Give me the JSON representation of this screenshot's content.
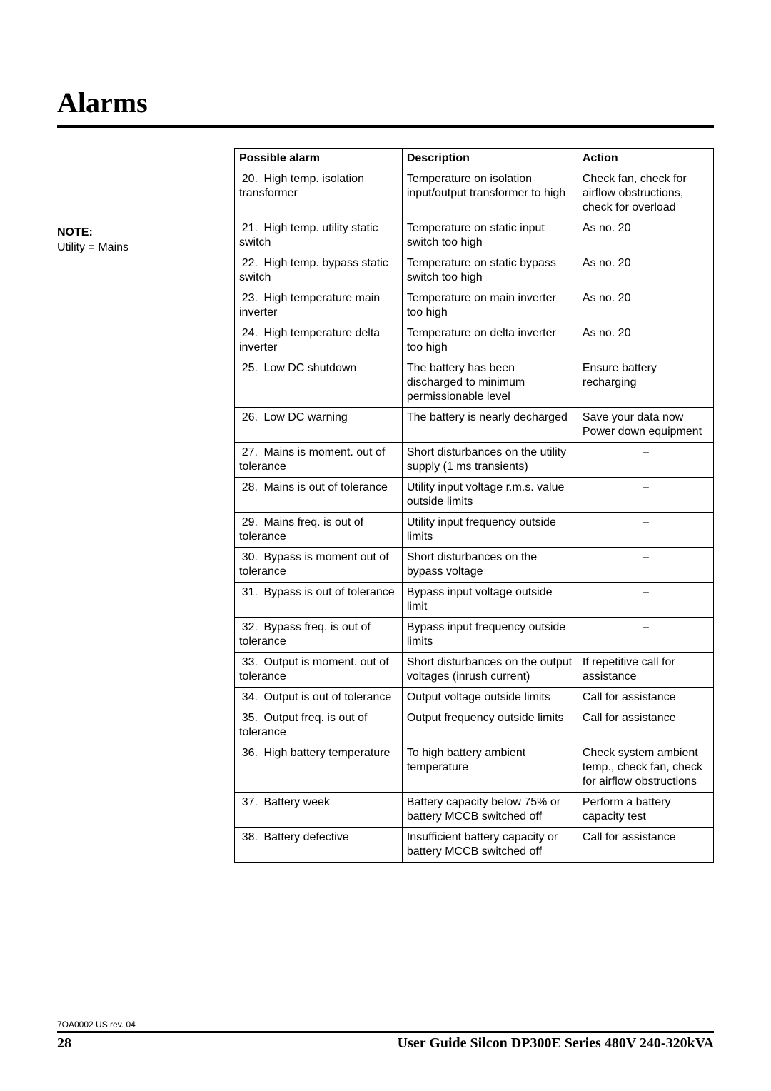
{
  "title": "Alarms",
  "sidebar": {
    "note_label": "NOTE:",
    "note_text": "Utility = Mains"
  },
  "table": {
    "columns": [
      "Possible alarm",
      "Description",
      "Action"
    ],
    "rows": [
      {
        "n": "20.",
        "alarm": "High temp. isolation transformer",
        "desc": "Temperature on isolation input/output transformer to high",
        "action": "Check fan, check for airflow obstructions, check for overload",
        "center": false
      },
      {
        "n": "21.",
        "alarm": "High temp. utility static switch",
        "desc": "Temperature on static input switch too high",
        "action": "As no. 20",
        "center": false
      },
      {
        "n": "22.",
        "alarm": "High temp. bypass static switch",
        "desc": "Temperature on static bypass switch too high",
        "action": "As no. 20",
        "center": false
      },
      {
        "n": "23.",
        "alarm": "High temperature main inverter",
        "desc": "Temperature on main inverter too high",
        "action": "As no. 20",
        "center": false
      },
      {
        "n": "24.",
        "alarm": "High temperature delta inverter",
        "desc": "Temperature on delta inverter too high",
        "action": "As no. 20",
        "center": false
      },
      {
        "n": "25.",
        "alarm": "Low DC shutdown",
        "desc": "The battery has been discharged to minimum permissionable level",
        "action": "Ensure battery recharging",
        "center": false
      },
      {
        "n": "26.",
        "alarm": "Low DC warning",
        "desc": "The battery is nearly decharged",
        "action": "Save your data now Power down equipment",
        "center": false
      },
      {
        "n": "27.",
        "alarm": "Mains is moment. out of tolerance",
        "desc": "Short disturbances on the utility supply (1 ms transients)",
        "action": "–",
        "center": true
      },
      {
        "n": "28.",
        "alarm": "Mains is out of tolerance",
        "desc": "Utility input voltage r.m.s. value outside limits",
        "action": "–",
        "center": true
      },
      {
        "n": "29.",
        "alarm": "Mains freq. is out of tolerance",
        "desc": "Utility input frequency outside limits",
        "action": "–",
        "center": true
      },
      {
        "n": "30.",
        "alarm": "Bypass is moment out of tolerance",
        "desc": "Short disturbances on the bypass voltage",
        "action": "–",
        "center": true
      },
      {
        "n": "31.",
        "alarm": "Bypass is out of tolerance",
        "desc": "Bypass input voltage outside limit",
        "action": "–",
        "center": true
      },
      {
        "n": "32.",
        "alarm": "Bypass freq. is out of tolerance",
        "desc": "Bypass input frequency outside limits",
        "action": "–",
        "center": true
      },
      {
        "n": "33.",
        "alarm": "Output is moment. out of tolerance",
        "desc": "Short disturbances on the output voltages (inrush current)",
        "action": "If repetitive call for assistance",
        "center": false
      },
      {
        "n": "34.",
        "alarm": "Output is out of tolerance",
        "desc": "Output voltage outside limits",
        "action": "Call for assistance",
        "center": false
      },
      {
        "n": "35.",
        "alarm": "Output freq. is out of tolerance",
        "desc": "Output frequency outside limits",
        "action": "Call for assistance",
        "center": false
      },
      {
        "n": "36.",
        "alarm": "High battery temperature",
        "desc": "To high battery ambient temperature",
        "action": "Check system ambient temp., check fan, check for airflow obstructions",
        "center": false
      },
      {
        "n": "37.",
        "alarm": "Battery week",
        "desc": "Battery capacity below 75% or battery MCCB switched off",
        "action": "Perform a battery capacity test",
        "center": false
      },
      {
        "n": "38.",
        "alarm": "Battery defective",
        "desc": "Insufficient battery capacity or battery MCCB switched off",
        "action": "Call for assistance",
        "center": false
      }
    ],
    "col_widths": {
      "alarm": 210,
      "desc": 220,
      "action": 170
    }
  },
  "footer": {
    "footnote": "7OA0002 US rev. 04",
    "page_number": "28",
    "doc_title": "User Guide Silcon DP300E Series 480V 240-320kVA"
  },
  "style": {
    "page_bg": "#ffffff",
    "text_color": "#000000",
    "rule_color": "#000000",
    "title_fontsize": 40,
    "body_fontsize": 16,
    "footnote_fontsize": 12,
    "footer_fontsize": 20
  }
}
